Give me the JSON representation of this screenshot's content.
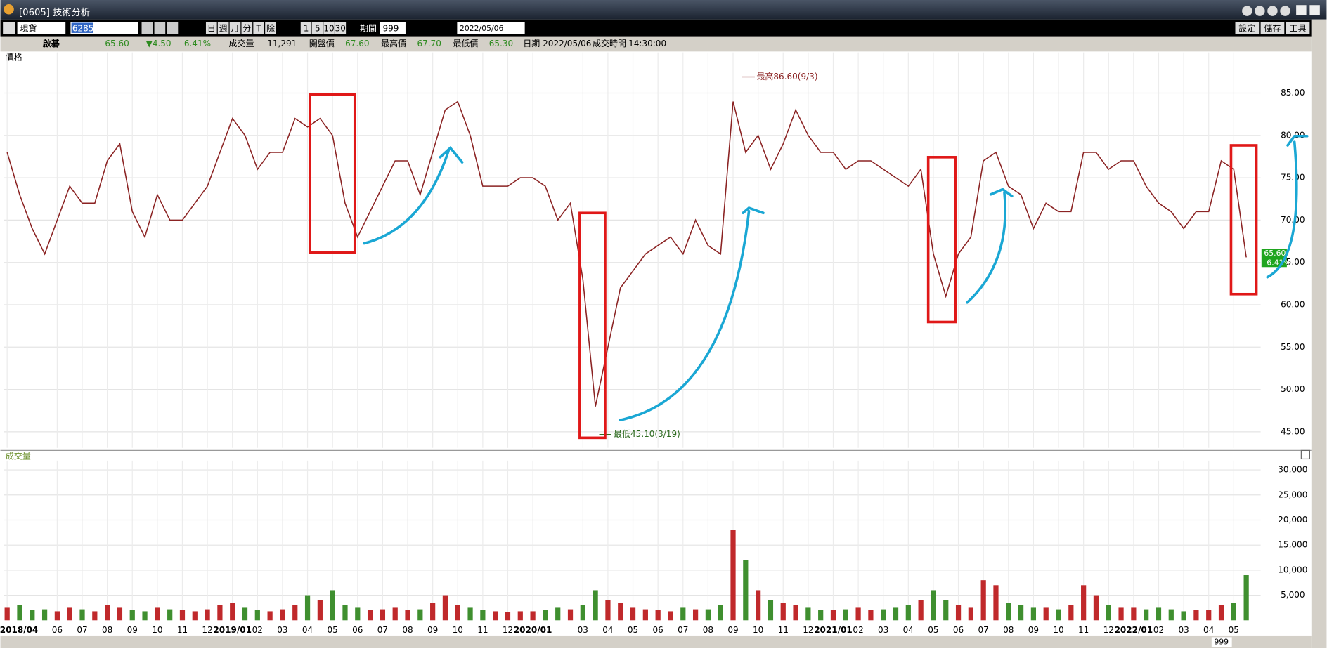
{
  "window": {
    "title": "[0605] 技術分析"
  },
  "toolbar": {
    "market": "現貨",
    "symbol": "6285",
    "periods": [
      "日",
      "週",
      "月",
      "分",
      "T",
      "除"
    ],
    "minutes": [
      "1",
      "5",
      "10",
      "30"
    ],
    "range_label": "期間",
    "range": "999",
    "date": "2022/05/06",
    "buttons": [
      "設定",
      "儲存",
      "工具"
    ]
  },
  "quote": {
    "name": "啟碁",
    "price": "65.60",
    "change": "▼4.50",
    "percent": "6.41%",
    "fields": [
      [
        "成交量",
        "11,291"
      ],
      [
        "開盤價",
        "67.60"
      ],
      [
        "最高價",
        "67.70"
      ],
      [
        "最低價",
        "65.30"
      ],
      [
        "日期",
        "2022/05/06"
      ],
      [
        "成交時間",
        "14:30:00"
      ]
    ]
  },
  "chart_data": [
    {
      "type": "line",
      "title": "價格",
      "color": "#8b2323",
      "categories": [
        "2018/04",
        null,
        null,
        null,
        "06",
        null,
        "07",
        null,
        "08",
        null,
        "09",
        null,
        "10",
        null,
        "11",
        null,
        "12",
        null,
        "2019/01",
        null,
        "02",
        null,
        "03",
        null,
        "04",
        null,
        "05",
        null,
        "06",
        null,
        "07",
        null,
        "08",
        null,
        "09",
        null,
        "10",
        null,
        "11",
        null,
        "12",
        null,
        "2020/01",
        null,
        null,
        null,
        "03",
        null,
        "04",
        null,
        "05",
        null,
        "06",
        null,
        "07",
        null,
        "08",
        null,
        "09",
        null,
        "10",
        null,
        "11",
        null,
        "12",
        null,
        "2021/01",
        null,
        "02",
        null,
        "03",
        null,
        "04",
        null,
        "05",
        null,
        "06",
        null,
        "07",
        null,
        "08",
        null,
        "09",
        null,
        "10",
        null,
        "11",
        null,
        "12",
        null,
        "2022/01",
        null,
        "02",
        null,
        "03",
        null,
        "04",
        null,
        "05",
        null
      ],
      "values": [
        78,
        73,
        69,
        66,
        70,
        74,
        72,
        72,
        77,
        79,
        71,
        68,
        73,
        70,
        70,
        72,
        74,
        78,
        82,
        80,
        76,
        78,
        78,
        82,
        81,
        82,
        80,
        72,
        68,
        71,
        74,
        77,
        77,
        73,
        78,
        83,
        84,
        80,
        74,
        74,
        74,
        75,
        75,
        74,
        70,
        72,
        63,
        48,
        55,
        62,
        64,
        66,
        67,
        68,
        66,
        70,
        67,
        66,
        84,
        78,
        80,
        76,
        79,
        83,
        80,
        78,
        78,
        76,
        77,
        77,
        76,
        75,
        74,
        76,
        66,
        61,
        66,
        68,
        77,
        78,
        74,
        73,
        69,
        72,
        71,
        71,
        78,
        78,
        76,
        77,
        77,
        74,
        72,
        71,
        69,
        71,
        71,
        77,
        76,
        65.6
      ],
      "ylim": [
        43.1,
        89.8
      ],
      "yticks": [
        {
          "value": 45,
          "label": "45.00"
        },
        {
          "value": 50,
          "label": "50.00"
        },
        {
          "value": 55,
          "label": "55.00"
        },
        {
          "value": 60,
          "label": "60.00"
        },
        {
          "value": 65,
          "label": "65.00"
        },
        {
          "value": 70,
          "label": "70.00"
        },
        {
          "value": 75,
          "label": "75.00"
        },
        {
          "value": 80,
          "label": "80.00"
        },
        {
          "value": 85,
          "label": "85.00"
        }
      ],
      "grid": true,
      "annotations": [
        "最高86.60(9/3)",
        "最低45.10(3/19)"
      ],
      "last_tag": [
        "65.60",
        "-6.41%"
      ]
    },
    {
      "type": "bar",
      "title": "成交量",
      "up_color": "#c0292b",
      "down_color": "#3f8f2f",
      "values": [
        2500,
        3000,
        2000,
        2200,
        1800,
        2500,
        2200,
        1800,
        3000,
        2500,
        2000,
        1800,
        2500,
        2200,
        2000,
        1800,
        2200,
        3000,
        3500,
        2500,
        2000,
        1800,
        2200,
        3000,
        5000,
        4000,
        6000,
        3000,
        2500,
        2000,
        2200,
        2500,
        2000,
        2200,
        3500,
        5000,
        3000,
        2500,
        2000,
        1800,
        1600,
        1800,
        1800,
        2000,
        2500,
        2200,
        3000,
        6000,
        4000,
        3500,
        2500,
        2200,
        2000,
        1800,
        2500,
        2200,
        2200,
        3000,
        18000,
        12000,
        6000,
        4000,
        3500,
        3000,
        2500,
        2000,
        2000,
        2200,
        2500,
        2000,
        2200,
        2500,
        3000,
        4000,
        6000,
        4000,
        3000,
        2500,
        8000,
        7000,
        3500,
        3000,
        2500,
        2500,
        2200,
        3000,
        7000,
        5000,
        3000,
        2500,
        2500,
        2200,
        2500,
        2200,
        1800,
        2000,
        2000,
        3000,
        3500,
        9000
      ],
      "ylim": [
        0,
        31850
      ],
      "yticks": [
        {
          "value": 5000,
          "label": "5,000"
        },
        {
          "value": 10000,
          "label": "10,000"
        },
        {
          "value": 15000,
          "label": "15,000"
        },
        {
          "value": 20000,
          "label": "20,000"
        },
        {
          "value": 25000,
          "label": "25,000"
        },
        {
          "value": 30000,
          "label": "30,000"
        }
      ],
      "grid": true
    }
  ],
  "footer": {
    "zoom": "999"
  }
}
